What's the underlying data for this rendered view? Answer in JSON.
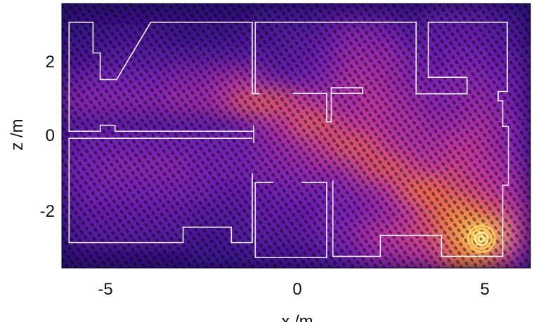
{
  "chart_data": {
    "type": "heatmap",
    "title": "",
    "xlabel": "x /m",
    "ylabel": "z /m",
    "xlim": [
      -6.14,
      6.19
    ],
    "ylim": [
      -3.53,
      3.53
    ],
    "xticks": [
      -5,
      0,
      5
    ],
    "yticks": [
      -2,
      0,
      2
    ],
    "xtick_labels": [
      "-5",
      "0",
      "5"
    ],
    "ytick_labels": [
      "-2",
      "0",
      "2"
    ],
    "grid": false,
    "colormap": [
      "#14084a",
      "#3a148c",
      "#7422b4",
      "#c0359e",
      "#f06a3a",
      "#ffe070"
    ],
    "wall_color": "#f4f0ff",
    "source_position": [
      4.9,
      -2.75
    ],
    "intensity_grid": {
      "x_centers": [
        -5.86,
        -5.3,
        -4.74,
        -4.18,
        -3.62,
        -3.06,
        -2.5,
        -1.94,
        -1.38,
        -0.82,
        -0.26,
        0.3,
        0.86,
        1.42,
        1.98,
        2.54,
        3.1,
        3.66,
        4.22,
        4.78,
        5.34,
        5.9
      ],
      "z_centers": [
        3.24,
        2.65,
        2.06,
        1.47,
        0.88,
        0.29,
        -0.29,
        -0.88,
        -1.47,
        -2.06,
        -2.65,
        -3.24
      ],
      "values": [
        [
          0.15,
          0.15,
          0.15,
          0.15,
          0.15,
          0.15,
          0.15,
          0.15,
          0.15,
          0.2,
          0.2,
          0.2,
          0.25,
          0.25,
          0.25,
          0.25,
          0.2,
          0.3,
          0.3,
          0.3,
          0.25,
          0.2
        ],
        [
          0.2,
          0.2,
          0.25,
          0.25,
          0.25,
          0.2,
          0.2,
          0.2,
          0.25,
          0.25,
          0.3,
          0.3,
          0.35,
          0.45,
          0.45,
          0.4,
          0.3,
          0.35,
          0.35,
          0.35,
          0.3,
          0.25
        ],
        [
          0.25,
          0.25,
          0.3,
          0.3,
          0.3,
          0.3,
          0.3,
          0.3,
          0.3,
          0.3,
          0.3,
          0.35,
          0.4,
          0.5,
          0.5,
          0.5,
          0.4,
          0.35,
          0.4,
          0.4,
          0.35,
          0.3
        ],
        [
          0.35,
          0.4,
          0.4,
          0.4,
          0.4,
          0.45,
          0.45,
          0.5,
          0.55,
          0.45,
          0.35,
          0.4,
          0.45,
          0.55,
          0.55,
          0.5,
          0.45,
          0.4,
          0.45,
          0.45,
          0.4,
          0.35
        ],
        [
          0.45,
          0.45,
          0.45,
          0.45,
          0.45,
          0.5,
          0.5,
          0.55,
          0.7,
          0.75,
          0.7,
          0.6,
          0.55,
          0.5,
          0.6,
          0.55,
          0.5,
          0.45,
          0.45,
          0.5,
          0.45,
          0.35
        ],
        [
          0.3,
          0.3,
          0.3,
          0.3,
          0.3,
          0.3,
          0.3,
          0.3,
          0.35,
          0.5,
          0.6,
          0.75,
          0.7,
          0.6,
          0.6,
          0.55,
          0.55,
          0.5,
          0.5,
          0.55,
          0.5,
          0.4
        ],
        [
          0.35,
          0.4,
          0.4,
          0.4,
          0.4,
          0.4,
          0.4,
          0.4,
          0.4,
          0.45,
          0.5,
          0.55,
          0.65,
          0.75,
          0.7,
          0.6,
          0.55,
          0.55,
          0.6,
          0.6,
          0.5,
          0.4
        ],
        [
          0.4,
          0.4,
          0.45,
          0.45,
          0.45,
          0.45,
          0.4,
          0.4,
          0.4,
          0.45,
          0.45,
          0.5,
          0.5,
          0.55,
          0.7,
          0.75,
          0.65,
          0.6,
          0.65,
          0.6,
          0.55,
          0.45
        ],
        [
          0.35,
          0.4,
          0.4,
          0.4,
          0.4,
          0.4,
          0.4,
          0.35,
          0.35,
          0.35,
          0.4,
          0.4,
          0.4,
          0.45,
          0.5,
          0.6,
          0.8,
          0.8,
          0.7,
          0.65,
          0.6,
          0.5
        ],
        [
          0.3,
          0.35,
          0.35,
          0.35,
          0.35,
          0.35,
          0.3,
          0.3,
          0.3,
          0.35,
          0.35,
          0.35,
          0.4,
          0.4,
          0.45,
          0.5,
          0.6,
          0.75,
          0.85,
          0.8,
          0.7,
          0.55
        ],
        [
          0.25,
          0.3,
          0.3,
          0.3,
          0.3,
          0.3,
          0.25,
          0.25,
          0.3,
          0.3,
          0.3,
          0.35,
          0.4,
          0.45,
          0.55,
          0.6,
          0.65,
          0.7,
          0.85,
          1.0,
          0.9,
          0.6
        ],
        [
          0.15,
          0.15,
          0.15,
          0.15,
          0.15,
          0.15,
          0.2,
          0.2,
          0.2,
          0.25,
          0.25,
          0.25,
          0.3,
          0.35,
          0.45,
          0.5,
          0.55,
          0.6,
          0.8,
          0.85,
          0.7,
          0.45
        ]
      ]
    },
    "walls": [
      [
        [
          -0.94,
          1.12
        ],
        [
          -1.13,
          1.12
        ],
        [
          -1.13,
          3.03
        ],
        [
          -3.8,
          3.03
        ],
        [
          -4.7,
          1.5
        ],
        [
          -5.13,
          1.5
        ],
        [
          -5.13,
          2.21
        ],
        [
          -5.32,
          2.21
        ],
        [
          -5.32,
          3.03
        ],
        [
          -5.95,
          3.03
        ],
        [
          -5.95,
          0.12
        ],
        [
          -5.13,
          0.12
        ],
        [
          -5.13,
          0.28
        ],
        [
          -4.74,
          0.28
        ],
        [
          -4.74,
          0.12
        ],
        [
          -1.09,
          0.12
        ]
      ],
      [
        [
          -1.09,
          0.28
        ],
        [
          -1.09,
          -0.19
        ]
      ],
      [
        [
          -1.13,
          -0.07
        ],
        [
          -5.95,
          -0.07
        ],
        [
          -5.95,
          -2.85
        ],
        [
          -2.95,
          -2.85
        ],
        [
          -2.95,
          -2.44
        ],
        [
          -1.68,
          -2.44
        ],
        [
          -1.68,
          -2.85
        ],
        [
          -1.13,
          -2.85
        ],
        [
          -1.13,
          -1.01
        ]
      ],
      [
        [
          -0.58,
          -1.25
        ],
        [
          -1.05,
          -1.25
        ],
        [
          -1.05,
          -3.25
        ],
        [
          0.83,
          -3.25
        ],
        [
          0.83,
          -1.25
        ],
        [
          0.17,
          -1.25
        ]
      ],
      [
        [
          0.99,
          -1.19
        ],
        [
          0.99,
          -3.22
        ],
        [
          2.24,
          -3.22
        ],
        [
          2.24,
          -2.66
        ],
        [
          3.85,
          -2.66
        ],
        [
          3.85,
          -3.22
        ],
        [
          5.46,
          -3.22
        ],
        [
          5.46,
          -1.32
        ],
        [
          5.61,
          -1.32
        ],
        [
          5.61,
          0.25
        ],
        [
          5.46,
          0.25
        ],
        [
          5.46,
          0.93
        ],
        [
          5.34,
          0.93
        ],
        [
          5.34,
          1.18
        ],
        [
          5.58,
          1.18
        ],
        [
          5.58,
          3.03
        ],
        [
          3.5,
          3.03
        ],
        [
          3.5,
          1.56
        ],
        [
          4.52,
          1.56
        ],
        [
          4.52,
          1.12
        ],
        [
          3.18,
          1.12
        ],
        [
          3.18,
          3.03
        ],
        [
          -1.05,
          3.03
        ],
        [
          -1.05,
          1.12
        ],
        [
          -0.94,
          1.12
        ]
      ],
      [
        [
          -0.07,
          1.13
        ],
        [
          0.83,
          1.13
        ],
        [
          0.83,
          0.37
        ],
        [
          0.95,
          0.37
        ],
        [
          0.95,
          1.28
        ],
        [
          1.77,
          1.28
        ],
        [
          1.77,
          1.13
        ],
        [
          0.95,
          1.13
        ]
      ]
    ]
  }
}
